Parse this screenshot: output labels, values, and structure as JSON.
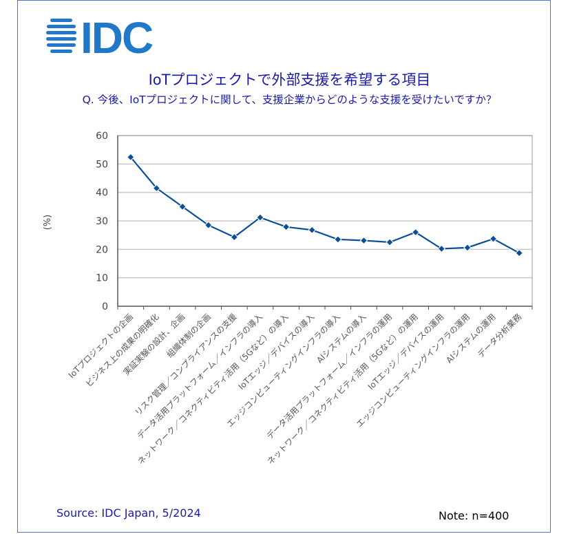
{
  "logo": {
    "text": "IDC",
    "color": "#1f78c8"
  },
  "title": "IoTプロジェクトで外部支援を希望する項目",
  "subtitle": "Q. 今後、IoTプロジェクトに関して、支援企業からどのような支援を受けたいですか？",
  "source": "Source: IDC Japan, 5/2024",
  "note": "Note: n=400",
  "chart_data": {
    "type": "line",
    "title": "IoTプロジェクトで外部支援を希望する項目",
    "xlabel": "",
    "ylabel": "(%)",
    "ylim": [
      0,
      60
    ],
    "yticks": [
      0,
      10,
      20,
      30,
      40,
      50,
      60
    ],
    "grid": true,
    "line_color": "#0b4f96",
    "categories": [
      "IoTプロジェクトの企画",
      "ビジネス上の成果の明確化",
      "実証実験の設計、企画",
      "組織体制の企画",
      "リスク管理／コンプライアンスの支援",
      "データ活用プラットフォーム／インフラの導入",
      "ネットワーク／コネクティビティ活用（5Gなど）の導入",
      "IoTエッジ／デバイスの導入",
      "エッジコンピューティングインフラの導入",
      "AIシステムの導入",
      "データ活用プラットフォーム／インフラの運用",
      "ネットワーク／コネクティビティ活用（5Gなど）の運用",
      "IoTエッジ／デバイスの運用",
      "エッジコンピューティングインフラの運用",
      "AIシステムの運用",
      "データ分析業務"
    ],
    "values": [
      52.4,
      41.5,
      35.0,
      28.5,
      24.3,
      31.2,
      27.9,
      26.8,
      23.5,
      23.1,
      22.5,
      26.0,
      20.2,
      20.6,
      23.7,
      18.7
    ]
  }
}
